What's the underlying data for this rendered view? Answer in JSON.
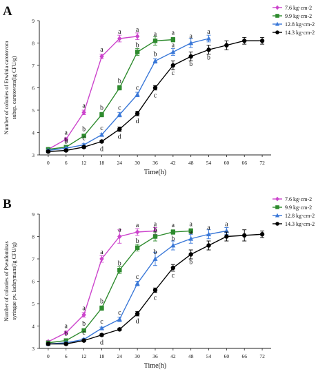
{
  "chart_data": [
    {
      "panel": "A",
      "type": "line",
      "xlabel": "Time(h)",
      "ylabel_lines": [
        "Number of colonies of Erwinia carotovora",
        "subsp. carotovora(lg CFU/g)"
      ],
      "xticks": [
        0,
        6,
        12,
        18,
        24,
        30,
        36,
        42,
        48,
        54,
        60,
        66,
        72
      ],
      "yticks": [
        3,
        4,
        5,
        6,
        7,
        8,
        9
      ],
      "xlim": [
        -3,
        75
      ],
      "ylim": [
        3,
        9
      ],
      "grid": false,
      "legend_position": "top-right",
      "series": [
        {
          "name": "7.6 kg·cm-2",
          "color": "#cc44cc",
          "marker": "diamond",
          "x": [
            0,
            6,
            12,
            18,
            24,
            30
          ],
          "y": [
            3.25,
            3.7,
            4.9,
            7.4,
            8.2,
            8.3
          ],
          "err": [
            0.05,
            0.05,
            0.1,
            0.1,
            0.15,
            0.15
          ],
          "labels": [
            "",
            "a",
            "a",
            "a",
            "a",
            "a"
          ],
          "label_pos": "above"
        },
        {
          "name": "9.9 kg·cm-2",
          "color": "#2e8b2e",
          "marker": "square",
          "x": [
            0,
            6,
            12,
            18,
            24,
            30,
            36,
            42
          ],
          "y": [
            3.25,
            3.35,
            3.85,
            4.8,
            6.0,
            7.6,
            8.1,
            8.15
          ],
          "err": [
            0.05,
            0.05,
            0.05,
            0.1,
            0.1,
            0.15,
            0.2,
            0.1
          ],
          "labels": [
            "",
            "b",
            "b",
            "b",
            "b",
            "b",
            "a",
            "a"
          ],
          "label_pos": "above"
        },
        {
          "name": "12.8 kg·cm-2",
          "color": "#3a78d8",
          "marker": "triangle",
          "x": [
            0,
            6,
            12,
            18,
            24,
            30,
            36,
            42,
            48,
            54
          ],
          "y": [
            3.2,
            3.3,
            3.45,
            3.9,
            4.8,
            5.7,
            7.2,
            7.6,
            8.0,
            8.2
          ],
          "err": [
            0.05,
            0.05,
            0.05,
            0.05,
            0.1,
            0.1,
            0.1,
            0.15,
            0.2,
            0.15
          ],
          "labels": [
            "",
            "b",
            "c",
            "c",
            "c",
            "c",
            "b",
            "a",
            "a",
            "a"
          ],
          "label_pos": "above"
        },
        {
          "name": "14.3 kg·cm-2",
          "color": "#000000",
          "marker": "circle",
          "x": [
            0,
            6,
            12,
            18,
            24,
            30,
            36,
            42,
            48,
            54,
            60,
            66,
            72
          ],
          "y": [
            3.15,
            3.2,
            3.35,
            3.6,
            4.15,
            4.85,
            6.0,
            7.0,
            7.4,
            7.7,
            7.9,
            8.1,
            8.1
          ],
          "err": [
            0.05,
            0.05,
            0.05,
            0.05,
            0.1,
            0.1,
            0.1,
            0.2,
            0.2,
            0.2,
            0.2,
            0.15,
            0.15
          ],
          "labels": [
            "",
            "",
            "",
            "d",
            "d",
            "d",
            "c",
            "c",
            "b",
            "b",
            "",
            "",
            ""
          ],
          "label_pos": "below"
        }
      ]
    },
    {
      "panel": "B",
      "type": "line",
      "xlabel": "Time(h)",
      "ylabel_lines": [
        "Number of colonies of Pseudominas",
        "syringae pv. lachrymans(lg CFU/g)"
      ],
      "xticks": [
        0,
        6,
        12,
        18,
        24,
        30,
        36,
        42,
        48,
        54,
        60,
        66,
        72
      ],
      "yticks": [
        3,
        4,
        5,
        6,
        7,
        8,
        9
      ],
      "xlim": [
        -3,
        75
      ],
      "ylim": [
        3,
        9
      ],
      "grid": false,
      "legend_position": "top-right",
      "series": [
        {
          "name": "7.6 kg·cm-2",
          "color": "#cc44cc",
          "marker": "diamond",
          "x": [
            0,
            6,
            12,
            18,
            24,
            30,
            36
          ],
          "y": [
            3.3,
            3.7,
            4.5,
            7.0,
            8.0,
            8.2,
            8.25
          ],
          "err": [
            0.05,
            0.05,
            0.1,
            0.15,
            0.3,
            0.15,
            0.15
          ],
          "labels": [
            "",
            "a",
            "a",
            "a",
            "a",
            "a",
            "a"
          ],
          "label_pos": "above"
        },
        {
          "name": "9.9 kg·cm-2",
          "color": "#2e8b2e",
          "marker": "square",
          "x": [
            0,
            6,
            12,
            18,
            24,
            30,
            36,
            42,
            48
          ],
          "y": [
            3.25,
            3.35,
            3.8,
            4.8,
            6.5,
            7.5,
            8.0,
            8.2,
            8.25
          ],
          "err": [
            0.05,
            0.05,
            0.05,
            0.1,
            0.15,
            0.15,
            0.2,
            0.1,
            0.1
          ],
          "labels": [
            "",
            "b",
            "b",
            "b",
            "b",
            "b",
            "b",
            "a",
            "a"
          ],
          "label_pos": "above"
        },
        {
          "name": "12.8 kg·cm-2",
          "color": "#3a78d8",
          "marker": "triangle",
          "x": [
            0,
            6,
            12,
            18,
            24,
            30,
            36,
            42,
            48,
            54,
            60
          ],
          "y": [
            3.2,
            3.25,
            3.4,
            3.9,
            4.3,
            5.9,
            7.0,
            7.6,
            7.9,
            8.1,
            8.25
          ],
          "err": [
            0.05,
            0.05,
            0.05,
            0.05,
            0.1,
            0.1,
            0.3,
            0.2,
            0.2,
            0.2,
            0.15
          ],
          "labels": [
            "",
            "",
            "c",
            "c",
            "c",
            "c",
            "b",
            "b",
            "a",
            "a",
            "a"
          ],
          "label_pos": "above"
        },
        {
          "name": "14.3 kg·cm-2",
          "color": "#000000",
          "marker": "circle",
          "x": [
            0,
            6,
            12,
            18,
            24,
            30,
            36,
            42,
            48,
            54,
            60,
            66,
            72
          ],
          "y": [
            3.2,
            3.2,
            3.35,
            3.6,
            3.85,
            4.55,
            5.6,
            6.6,
            7.2,
            7.6,
            8.0,
            8.05,
            8.1
          ],
          "err": [
            0.05,
            0.05,
            0.05,
            0.05,
            0.05,
            0.1,
            0.1,
            0.15,
            0.2,
            0.2,
            0.2,
            0.25,
            0.15
          ],
          "labels": [
            "",
            "",
            "",
            "d",
            "",
            "d",
            "c",
            "c",
            "b",
            "",
            "",
            "",
            ""
          ],
          "label_pos": "below"
        }
      ]
    }
  ]
}
